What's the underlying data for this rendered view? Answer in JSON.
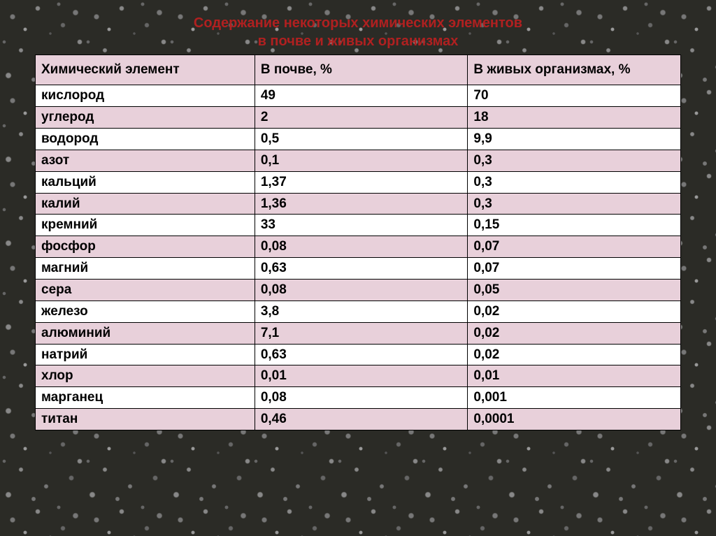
{
  "title_line1": "Содержание некоторых химических элементов",
  "title_line2": "в почве и живых организмах",
  "title_color": "#b02020",
  "title_fontsize": "20px",
  "header_bg": "#e8d0da",
  "row_odd_bg": "#e8d0da",
  "row_even_bg": "#ffffff",
  "columns": [
    "Химический элемент",
    "В почве, %",
    "В живых организмах, %"
  ],
  "rows": [
    [
      "кислород",
      "49",
      "70"
    ],
    [
      "углерод",
      "2",
      "18"
    ],
    [
      "водород",
      "0,5",
      "9,9"
    ],
    [
      "азот",
      "0,1",
      "0,3"
    ],
    [
      "кальций",
      "1,37",
      "0,3"
    ],
    [
      "калий",
      "1,36",
      "0,3"
    ],
    [
      "кремний",
      "33",
      "0,15"
    ],
    [
      "фосфор",
      "0,08",
      "0,07"
    ],
    [
      "магний",
      "0,63",
      "0,07"
    ],
    [
      "сера",
      "0,08",
      "0,05"
    ],
    [
      "железо",
      "3,8",
      "0,02"
    ],
    [
      "алюминий",
      "7,1",
      "0,02"
    ],
    [
      "натрий",
      "0,63",
      "0,02"
    ],
    [
      "хлор",
      "0,01",
      "0,01"
    ],
    [
      "марганец",
      "0,08",
      "0,001"
    ],
    [
      "титан",
      "0,46",
      "0,0001"
    ]
  ]
}
